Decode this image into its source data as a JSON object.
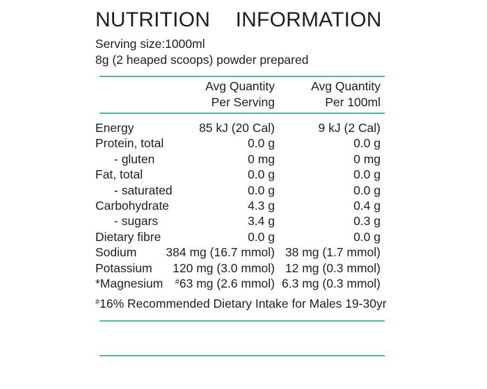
{
  "colors": {
    "accent_line": "#52b5a0",
    "text": "#1e1e1e"
  },
  "label": {
    "title": "NUTRITION INFORMATION",
    "serving_size": "Serving size:1000ml",
    "serving_detail": "8g (2 heaped scoops) powder prepared",
    "footnote": "#16% Recommended Dietary Intake for Males 19-30yr"
  },
  "table": {
    "header": {
      "per_serving_line1": "Avg Quantity",
      "per_serving_line2": "Per Serving",
      "per_100ml_line1": "Avg Quantity",
      "per_100ml_line2": "Per 100ml"
    },
    "rows": [
      {
        "label": "Energy",
        "indent": false,
        "per_serving": "85 kJ (20 Cal)",
        "per_100ml": "9 kJ (2 Cal)"
      },
      {
        "label": "Protein, total",
        "indent": false,
        "per_serving": "0.0 g",
        "per_100ml": "0.0 g"
      },
      {
        "label": "- gluten",
        "indent": true,
        "per_serving": "0 mg",
        "per_100ml": "0 mg"
      },
      {
        "label": "Fat, total",
        "indent": false,
        "per_serving": "0.0 g",
        "per_100ml": "0.0 g"
      },
      {
        "label": "- saturated",
        "indent": true,
        "per_serving": "0.0 g",
        "per_100ml": "0.0 g"
      },
      {
        "label": "Carbohydrate",
        "indent": false,
        "per_serving": "4.3 g",
        "per_100ml": "0.4 g"
      },
      {
        "label": "- sugars",
        "indent": true,
        "per_serving": "3.4 g",
        "per_100ml": "0.3 g"
      },
      {
        "label": "Dietary fibre",
        "indent": false,
        "per_serving": "0.0 g",
        "per_100ml": "0.0 g"
      },
      {
        "label": "Sodium",
        "indent": false,
        "per_serving": "384 mg (16.7 mmol)",
        "per_100ml": "38 mg (1.7 mmol)"
      },
      {
        "label": "Potassium",
        "indent": false,
        "per_serving": "120 mg (3.0 mmol)",
        "per_100ml": "12 mg (0.3 mmol)"
      },
      {
        "label": "*Magnesium",
        "indent": false,
        "per_serving": "#63 mg (2.6 mmol)",
        "per_100ml": "6.3 mg (0.3 mmol)"
      }
    ]
  }
}
